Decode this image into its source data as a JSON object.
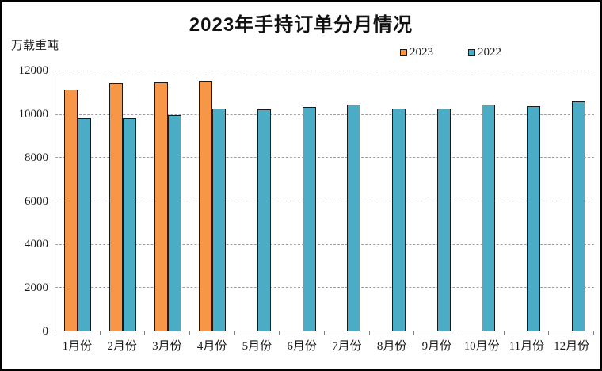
{
  "chart": {
    "frame_border_color": "#000000",
    "plot_axis_color": "#808080",
    "gridline_color": "#a0a0a0",
    "bar_border_color": "#1a1a1a"
  },
  "chart_data": {
    "type": "bar",
    "title": "2023年手持订单分月情况",
    "ylabel": "万载重吨",
    "xlabel": "",
    "categories": [
      "1月份",
      "2月份",
      "3月份",
      "4月份",
      "5月份",
      "6月份",
      "7月份",
      "8月份",
      "9月份",
      "10月份",
      "11月份",
      "12月份"
    ],
    "series": [
      {
        "name": "2023",
        "color": "#F79646",
        "values": [
          11113,
          11403,
          11452,
          11508,
          null,
          null,
          null,
          null,
          null,
          null,
          null,
          null
        ]
      },
      {
        "name": "2022",
        "color": "#4BACC6",
        "values": [
          9817,
          9798,
          9934,
          10247,
          10220,
          10320,
          10416,
          10250,
          10250,
          10430,
          10370,
          10557
        ]
      }
    ],
    "ylim": [
      0,
      12000
    ],
    "yticks": [
      0,
      2000,
      4000,
      6000,
      8000,
      10000,
      12000
    ],
    "grid": true,
    "gridline_style": "dashed",
    "legend_position": "top-right"
  }
}
